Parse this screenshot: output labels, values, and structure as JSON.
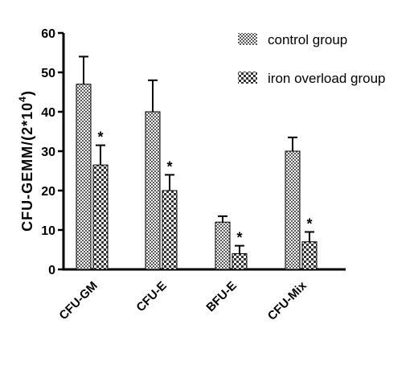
{
  "chart_data": {
    "type": "bar",
    "ylabel_main": "CFU-GEMM/(2*10",
    "ylabel_sup": "4",
    "ylabel_close": ")",
    "ylim": [
      0,
      60
    ],
    "yticks": [
      "0",
      "10",
      "20",
      "30",
      "40",
      "50",
      "60"
    ],
    "categories": [
      "CFU-GM",
      "CFU-E",
      "BFU-E",
      "CFU-Mix"
    ],
    "series": [
      {
        "name": "control group",
        "values": [
          47,
          40,
          12,
          30
        ],
        "errors": [
          7,
          8,
          1.5,
          3.5
        ],
        "marks": [
          "",
          "",
          "",
          ""
        ]
      },
      {
        "name": "iron overload group",
        "values": [
          26.5,
          20,
          4,
          7
        ],
        "errors": [
          5,
          4,
          2,
          2.5
        ],
        "marks": [
          "*",
          "*",
          "*",
          "*"
        ]
      }
    ],
    "legend_position": "top-right",
    "grid": false
  }
}
